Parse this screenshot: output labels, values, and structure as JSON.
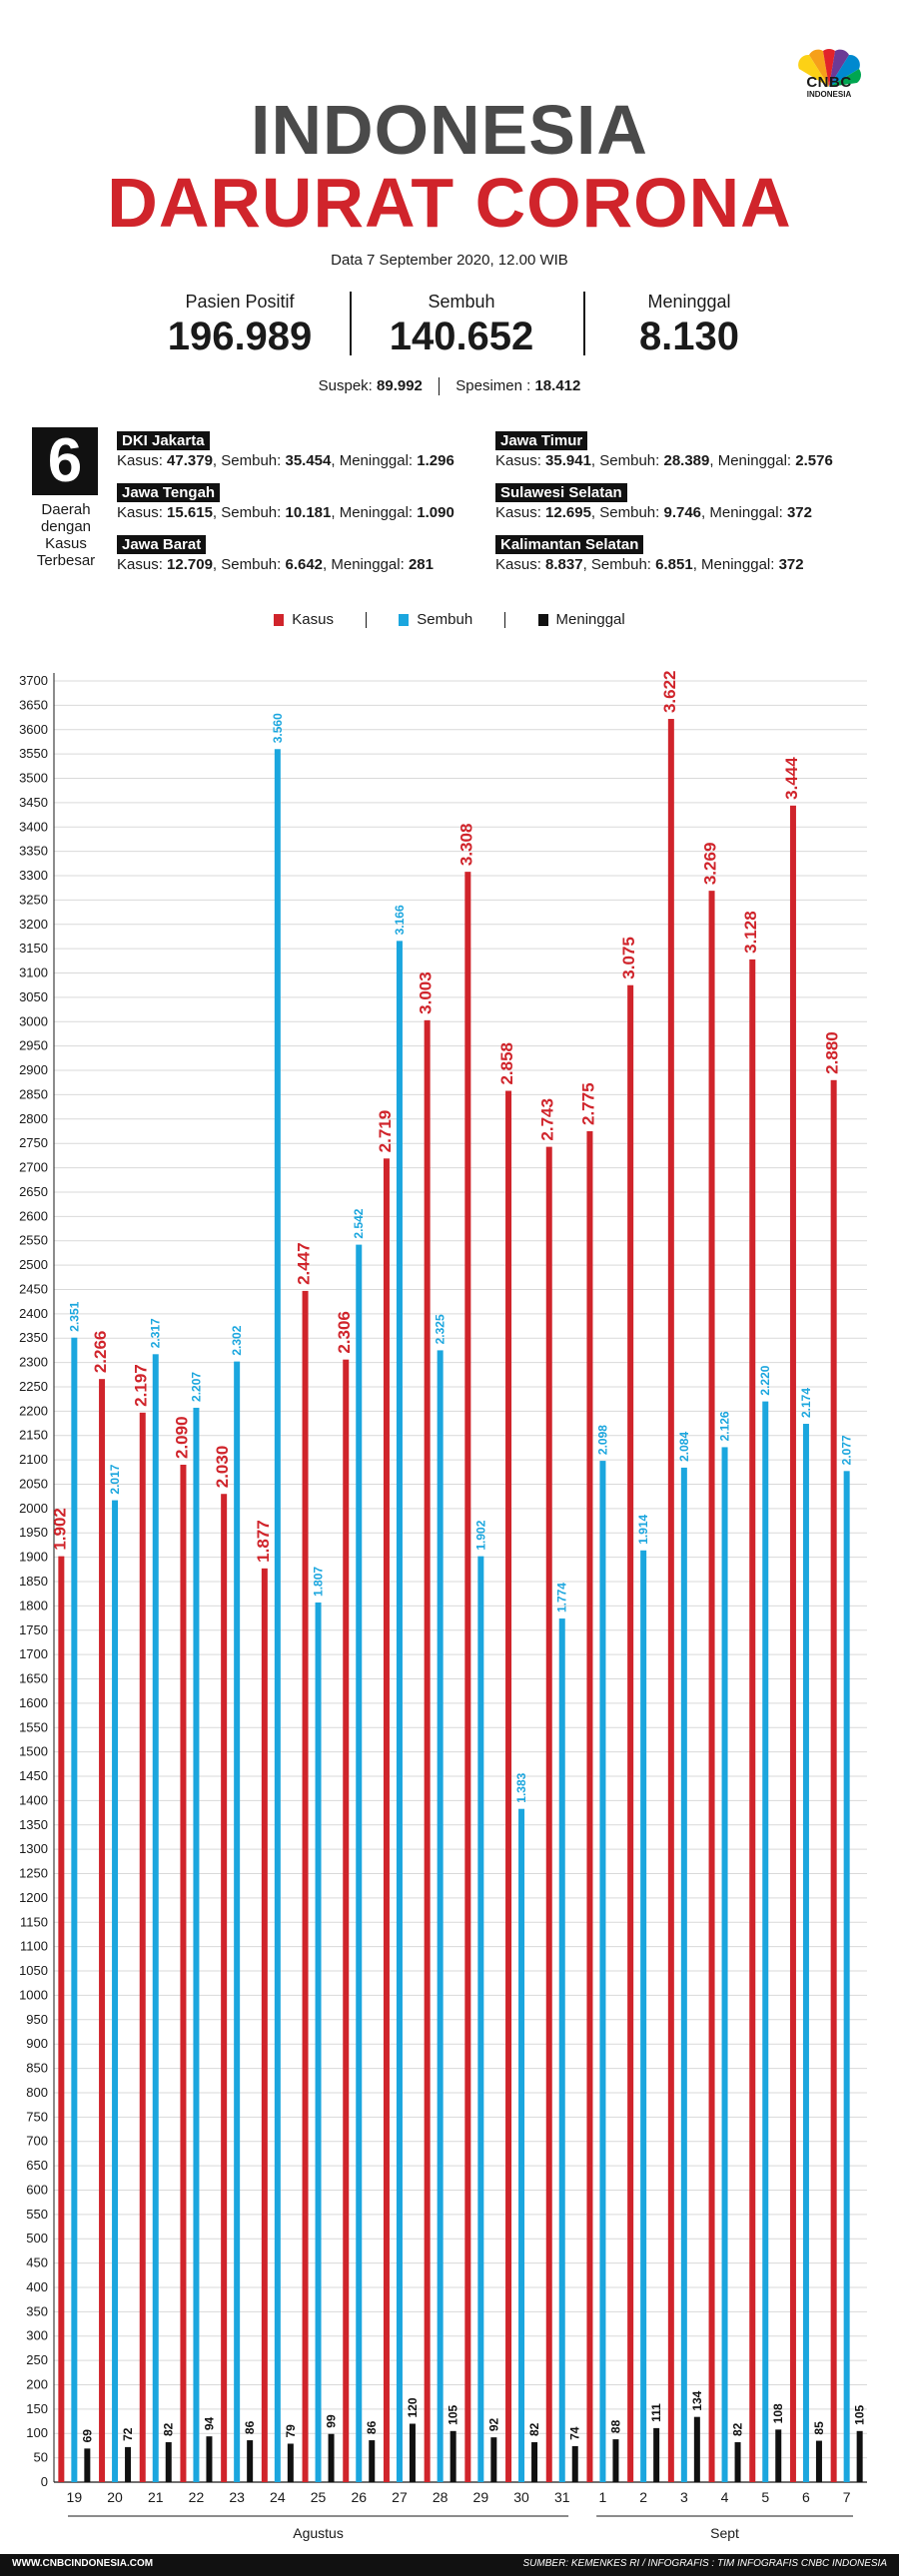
{
  "brand": {
    "name": "CNBC",
    "sub": "INDONESIA"
  },
  "header": {
    "title_line1": "INDONESIA",
    "title_line2": "DARURAT CORONA",
    "date": "Data 7 September 2020, 12.00 WIB"
  },
  "stats": [
    {
      "label": "Pasien Positif",
      "value": "196.989"
    },
    {
      "label": "Sembuh",
      "value": "140.652"
    },
    {
      "label": "Meninggal",
      "value": "8.130"
    }
  ],
  "suspek": {
    "label": "Suspek:",
    "value": "89.992"
  },
  "spesimen": {
    "label": "Spesimen :",
    "value": "18.412"
  },
  "regions_box": {
    "number": "6",
    "caption": "Daerah dengan Kasus Terbesar"
  },
  "regions": [
    {
      "name": "DKI Jakarta",
      "kasus": "47.379",
      "sembuh": "35.454",
      "meninggal": "1.296"
    },
    {
      "name": "Jawa Tengah",
      "kasus": "15.615",
      "sembuh": "10.181",
      "meninggal": "1.090"
    },
    {
      "name": "Jawa Barat",
      "kasus": "12.709",
      "sembuh": "6.642",
      "meninggal": "281"
    },
    {
      "name": "Jawa Timur",
      "kasus": "35.941",
      "sembuh": "28.389",
      "meninggal": "2.576"
    },
    {
      "name": "Sulawesi Selatan",
      "kasus": "12.695",
      "sembuh": "9.746",
      "meninggal": "372"
    },
    {
      "name": "Kalimantan Selatan",
      "kasus": "8.837",
      "sembuh": "6.851",
      "meninggal": "372"
    }
  ],
  "region_labels": {
    "kasus": "Kasus:",
    "sembuh": "Sembuh:",
    "meninggal": "Meninggal:"
  },
  "colors": {
    "kasus": "#d0242b",
    "sembuh": "#1ba6de",
    "meninggal": "#111111",
    "title_gray": "#4a4a4a"
  },
  "chart_data": {
    "type": "bar",
    "categories": [
      "19",
      "20",
      "21",
      "22",
      "23",
      "24",
      "25",
      "26",
      "27",
      "28",
      "29",
      "30",
      "31",
      "1",
      "2",
      "3",
      "4",
      "5",
      "6",
      "7"
    ],
    "month_groups": [
      {
        "label": "Agustus",
        "count": 13
      },
      {
        "label": "Sept",
        "count": 7
      }
    ],
    "series": [
      {
        "name": "Kasus",
        "color": "#d0242b",
        "values": [
          1902,
          2266,
          2197,
          2090,
          2030,
          1877,
          2447,
          2306,
          2719,
          3003,
          3308,
          2858,
          2743,
          2775,
          3075,
          3622,
          3269,
          3128,
          3444,
          2880
        ],
        "labels": [
          "1.902",
          "2.266",
          "2.197",
          "2.090",
          "2.030",
          "1.877",
          "2.447",
          "2.306",
          "2.719",
          "3.003",
          "3.308",
          "2.858",
          "2.743",
          "2.775",
          "3.075",
          "3.622",
          "3.269",
          "3.128",
          "3.444",
          "2.880"
        ]
      },
      {
        "name": "Sembuh",
        "color": "#1ba6de",
        "values": [
          2351,
          2017,
          2317,
          2207,
          2302,
          3560,
          1807,
          2542,
          3166,
          2325,
          1902,
          1383,
          1774,
          2098,
          1914,
          2084,
          2126,
          2220,
          2174,
          2077
        ],
        "labels": [
          "2.351",
          "2.017",
          "2.317",
          "2.207",
          "2.302",
          "3.560",
          "1.807",
          "2.542",
          "3.166",
          "2.325",
          "1.902",
          "1.383",
          "1.774",
          "2.098",
          "1.914",
          "2.084",
          "2.126",
          "2.220",
          "2.174",
          "2.077"
        ]
      },
      {
        "name": "Meninggal",
        "color": "#111111",
        "values": [
          69,
          72,
          82,
          94,
          86,
          79,
          99,
          86,
          120,
          105,
          92,
          82,
          74,
          88,
          111,
          134,
          82,
          108,
          85,
          105
        ],
        "labels": [
          "69",
          "72",
          "82",
          "94",
          "86",
          "79",
          "99",
          "86",
          "120",
          "105",
          "92",
          "82",
          "74",
          "88",
          "111",
          "134",
          "82",
          "108",
          "85",
          "105"
        ]
      }
    ],
    "ylim": [
      0,
      3700
    ],
    "ytick_step": 50,
    "grid": true,
    "legend": "top-center"
  },
  "footer": {
    "left": "WWW.CNBCINDONESIA.COM",
    "right": "SUMBER: KEMENKES RI / INFOGRAFIS : TIM INFOGRAFIS CNBC INDONESIA"
  }
}
